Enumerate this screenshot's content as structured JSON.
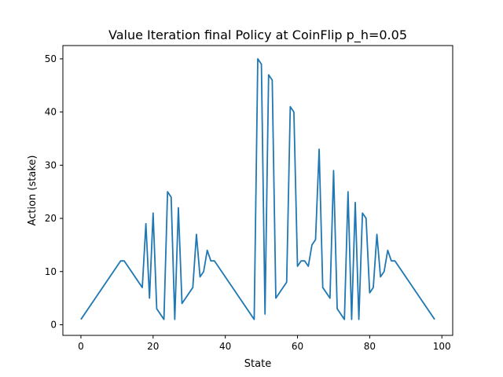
{
  "chart_data": {
    "type": "line",
    "title": "Value Iteration final Policy at CoinFlip p_h=0.05",
    "xlabel": "State",
    "ylabel": "Action (stake)",
    "xlim": [
      -5,
      103
    ],
    "ylim": [
      -2,
      52.5
    ],
    "xticks": [
      0,
      20,
      40,
      60,
      80,
      100
    ],
    "yticks": [
      0,
      10,
      20,
      30,
      40,
      50
    ],
    "grid": false,
    "color": "#1f77b4",
    "series": [
      {
        "x": [
          0,
          11,
          12,
          17,
          18,
          19,
          20,
          21,
          23,
          24,
          25,
          26,
          27,
          28,
          31,
          32,
          33,
          34,
          35,
          36,
          37,
          48,
          49,
          50,
          51,
          52,
          53,
          54,
          57,
          58,
          59,
          60,
          61,
          62,
          63,
          64,
          65,
          66,
          67,
          69,
          70,
          71,
          73,
          74,
          75,
          76,
          77,
          78,
          79,
          80,
          81,
          82,
          83,
          84,
          85,
          86,
          87,
          98
        ],
        "y": [
          1,
          12,
          12,
          7,
          19,
          5,
          21,
          3,
          1,
          25,
          24,
          1,
          22,
          4,
          7,
          17,
          9,
          10,
          14,
          12,
          12,
          1,
          50,
          49,
          2,
          47,
          46,
          5,
          8,
          41,
          40,
          11,
          12,
          12,
          11,
          15,
          16,
          33,
          7,
          5,
          29,
          3,
          1,
          25,
          1,
          23,
          1,
          21,
          20,
          6,
          7,
          17,
          9,
          10,
          14,
          12,
          12,
          1
        ]
      }
    ]
  }
}
